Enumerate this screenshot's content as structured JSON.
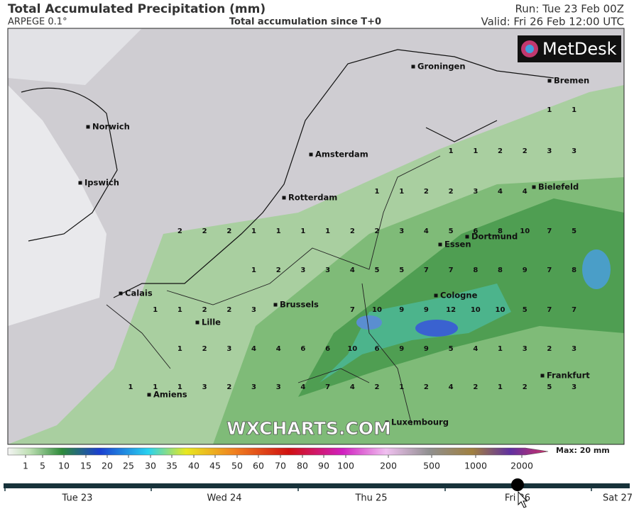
{
  "header": {
    "title": "Total Accumulated Precipitation (mm)",
    "model": "ARPEGE 0.1°",
    "subtitle": "Total accumulation since T+0",
    "run": "Run: Tue 23 Feb 00Z",
    "valid": "Valid: Fri 26 Feb 12:00 UTC"
  },
  "logo": "MetDesk",
  "watermark": "WXCHARTS.COM",
  "cities": [
    "Groningen",
    "Bremen",
    "Norwich",
    "Amsterdam",
    "Ipswich",
    "Rotterdam",
    "Bielefeld",
    "Dortmund",
    "Essen",
    "Calais",
    "Cologne",
    "Brussels",
    "Lille",
    "Frankfurt",
    "Amiens",
    "Luxembourg"
  ],
  "precip_grid": [
    [
      null,
      null,
      null,
      null,
      null,
      null,
      null,
      null,
      null,
      null,
      null,
      null,
      null,
      null,
      null,
      null,
      null,
      1,
      1
    ],
    [
      null,
      null,
      null,
      null,
      null,
      null,
      null,
      null,
      null,
      null,
      null,
      null,
      null,
      1,
      1,
      2,
      2,
      3,
      3
    ],
    [
      null,
      null,
      null,
      null,
      null,
      null,
      null,
      null,
      null,
      null,
      1,
      1,
      2,
      2,
      3,
      4,
      4,
      null,
      null
    ],
    [
      null,
      null,
      2,
      2,
      2,
      1,
      1,
      1,
      1,
      2,
      2,
      3,
      4,
      5,
      6,
      8,
      10,
      7,
      5
    ],
    [
      null,
      null,
      null,
      null,
      null,
      1,
      2,
      3,
      3,
      4,
      5,
      5,
      7,
      7,
      8,
      8,
      9,
      7,
      8
    ],
    [
      null,
      1,
      1,
      2,
      2,
      3,
      null,
      null,
      null,
      7,
      10,
      9,
      9,
      12,
      10,
      10,
      5,
      7,
      7
    ],
    [
      null,
      null,
      1,
      2,
      3,
      4,
      4,
      6,
      6,
      10,
      6,
      9,
      9,
      5,
      4,
      1,
      3,
      2,
      3
    ],
    [
      1,
      1,
      1,
      3,
      2,
      3,
      3,
      4,
      7,
      4,
      2,
      1,
      2,
      4,
      2,
      1,
      2,
      5,
      3
    ]
  ],
  "colorbar": {
    "ticks": [
      1,
      5,
      10,
      15,
      20,
      25,
      30,
      35,
      40,
      45,
      50,
      60,
      70,
      80,
      90,
      100,
      200,
      500,
      1000,
      2000
    ],
    "max_label": "Max: 20 mm"
  },
  "timeline": [
    "Tue 23",
    "Wed 24",
    "Thu 25",
    "Fri 26",
    "Sat 27"
  ]
}
